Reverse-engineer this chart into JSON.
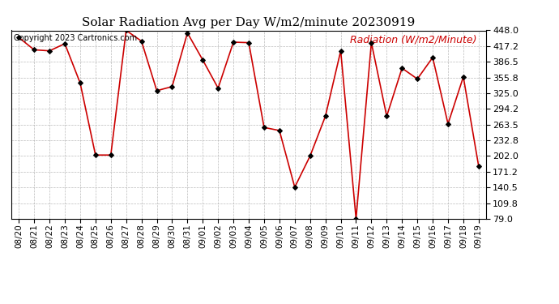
{
  "title": "Solar Radiation Avg per Day W/m2/minute 20230919",
  "copyright_text": "Copyright 2023 Cartronics.com",
  "legend_label": "Radiation (W/m2/Minute)",
  "dates": [
    "08/20",
    "08/21",
    "08/22",
    "08/23",
    "08/24",
    "08/25",
    "08/26",
    "08/27",
    "08/28",
    "08/29",
    "08/30",
    "08/31",
    "09/01",
    "09/02",
    "09/03",
    "09/04",
    "09/05",
    "09/06",
    "09/07",
    "09/08",
    "09/09",
    "09/10",
    "09/11",
    "09/12",
    "09/13",
    "09/14",
    "09/15",
    "09/16",
    "09/17",
    "09/18",
    "09/19"
  ],
  "values": [
    434,
    410,
    408,
    422,
    345,
    204,
    204,
    448,
    427,
    330,
    338,
    443,
    390,
    335,
    425,
    424,
    258,
    252,
    141,
    202,
    280,
    408,
    79,
    424,
    280,
    374,
    353,
    395,
    265,
    357,
    182
  ],
  "ylim": [
    79.0,
    448.0
  ],
  "yticks": [
    79.0,
    109.8,
    140.5,
    171.2,
    202.0,
    232.8,
    263.5,
    294.2,
    325.0,
    355.8,
    386.5,
    417.2,
    448.0
  ],
  "line_color": "#cc0000",
  "marker_color": "#000000",
  "bg_color": "#ffffff",
  "grid_color": "#aaaaaa",
  "title_fontsize": 11,
  "copyright_fontsize": 7,
  "legend_fontsize": 9,
  "legend_color": "#cc0000",
  "tick_fontsize": 7.5,
  "ytick_fontsize": 8
}
